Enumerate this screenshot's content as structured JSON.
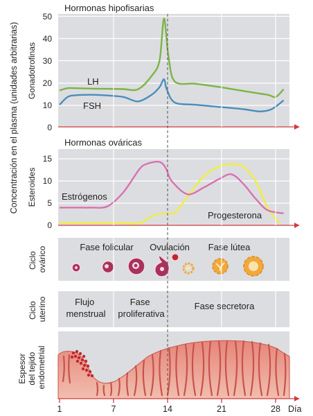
{
  "figure": {
    "y_axis_label": "Concentración en el plasma (unidades arbitrarias)",
    "x_axis_unit": "Día",
    "x_ticks": [
      "1",
      "7",
      "14",
      "21",
      "28"
    ],
    "colors": {
      "panel_bg": "#dcdde0",
      "axis_red": "#cf3b3e",
      "lh": "#7cb445",
      "fsh": "#4a8dbc",
      "estrogen": "#d971b1",
      "progesterone": "#f1ee3e",
      "follicle": "#a8325a",
      "corpus_luteum": "#f0a93b",
      "endometrium_top": "#e6857a",
      "endometrium_base": "#f1beae"
    }
  },
  "panels": {
    "pituitary": {
      "title": "Hormonas hipofisarias",
      "axis_label": "Gonadotrofinas",
      "y_ticks": [
        "0",
        "10",
        "20",
        "30",
        "40",
        "50"
      ],
      "series_labels": {
        "lh": "LH",
        "fsh": "FSH"
      }
    },
    "ovarian": {
      "title": "Hormonas ováricas",
      "axis_label": "Esteroides",
      "y_ticks": [
        "0",
        "5",
        "10",
        "15"
      ],
      "series_labels": {
        "estrogen": "Estrógenos",
        "progesterone": "Progesterona"
      }
    },
    "ovarian_cycle": {
      "label": [
        "Ciclo",
        "ovárico"
      ],
      "phases": {
        "follicular": "Fase folicular",
        "ovulation": "Ovulación",
        "luteal": "Fase lútea"
      }
    },
    "uterine_cycle": {
      "label": [
        "Ciclo",
        "uterino"
      ],
      "phases": {
        "menstrual": [
          "Flujo",
          "menstrual"
        ],
        "proliferative": [
          "Fase",
          "proliferativa"
        ],
        "secretory": "Fase secretora"
      }
    },
    "endometrium": {
      "label": [
        "Espesor",
        "del tejido",
        "endometrial"
      ]
    }
  },
  "chart_data": [
    {
      "type": "line",
      "title": "Hormonas hipofisarias",
      "ylabel": "Gonadotrofinas",
      "xlabel": "Día",
      "xlim": [
        1,
        28
      ],
      "ylim": [
        0,
        50
      ],
      "series": [
        {
          "name": "LH",
          "x": [
            1,
            2,
            3,
            5,
            7,
            9,
            10.8,
            12.5,
            13.5,
            14.05,
            14.6,
            15.4,
            18,
            21,
            24,
            27,
            28,
            29
          ],
          "y": [
            16.5,
            17.5,
            17.5,
            17.3,
            17.2,
            17.1,
            17,
            23,
            30,
            49,
            32,
            20.5,
            19.5,
            18,
            16.2,
            14.5,
            13.5,
            17
          ]
        },
        {
          "name": "FSH",
          "x": [
            1,
            2,
            3,
            5,
            7,
            9,
            10.8,
            12.5,
            13.5,
            14.05,
            14.4,
            15.4,
            18,
            21,
            24,
            26,
            27.5,
            29
          ],
          "y": [
            10,
            13.5,
            14.3,
            14.5,
            14.2,
            13.5,
            11.5,
            14.5,
            18,
            21.5,
            17,
            11,
            10,
            9,
            8,
            7,
            8,
            12
          ]
        }
      ]
    },
    {
      "type": "line",
      "title": "Hormonas ováricas",
      "ylabel": "Esteroides",
      "xlabel": "Día",
      "xlim": [
        1,
        28
      ],
      "ylim": [
        0,
        15
      ],
      "series": [
        {
          "name": "Estrógenos",
          "x": [
            1,
            3,
            5,
            7,
            9,
            11,
            12,
            13.5,
            14.3,
            15,
            17,
            19,
            21,
            22.5,
            24,
            25.5,
            27,
            29
          ],
          "y": [
            4,
            4,
            4,
            4.3,
            7.5,
            12.7,
            13.9,
            14.3,
            12.8,
            10,
            7,
            8.5,
            10.5,
            11.5,
            9.3,
            6,
            3.4,
            2.7
          ]
        },
        {
          "name": "Progesterona",
          "x": [
            1,
            3,
            5,
            7,
            9,
            11,
            12.5,
            13.5,
            14.5,
            15.5,
            17,
            19,
            21,
            22.5,
            24,
            25.5,
            27,
            28.5
          ],
          "y": [
            0.5,
            0.5,
            0.5,
            0.5,
            0.5,
            0.5,
            2,
            2.6,
            2.6,
            3,
            6.5,
            11,
            13.3,
            13.8,
            13.2,
            10,
            4,
            0.5
          ]
        }
      ]
    }
  ]
}
